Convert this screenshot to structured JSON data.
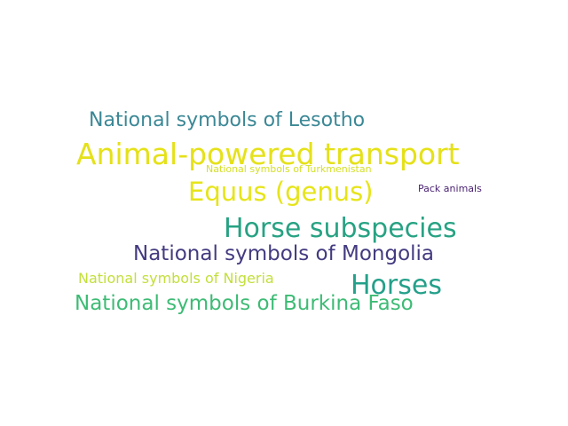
{
  "words": [
    {
      "text": "National symbols of Lesotho",
      "color": "#3b8896"
    },
    {
      "text": "Animal-powered transport",
      "color": "#e5e119"
    },
    {
      "text": "National symbols of Turkmenistan",
      "color": "#d4e02a"
    },
    {
      "text": "Equus (genus)",
      "color": "#e6e419"
    },
    {
      "text": "Pack animals",
      "color": "#481f70"
    },
    {
      "text": "Horse subspecies",
      "color": "#27a283"
    },
    {
      "text": "National symbols of Mongolia",
      "color": "#433b80"
    },
    {
      "text": "National symbols of Nigeria",
      "color": "#c2df3b"
    },
    {
      "text": "Horses",
      "color": "#24a08a"
    },
    {
      "text": "National symbols of Burkina Faso",
      "color": "#3dbb75"
    }
  ]
}
